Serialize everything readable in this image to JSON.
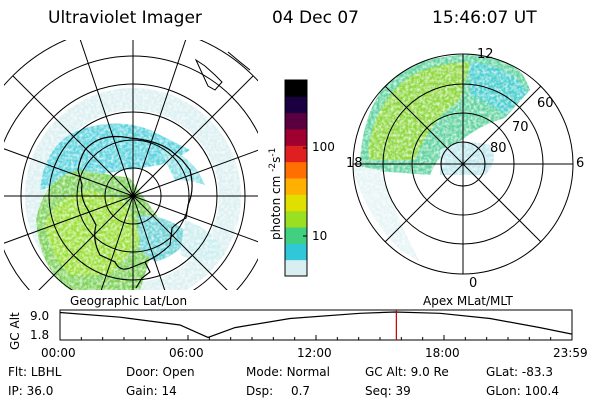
{
  "header": {
    "instrument": "Ultraviolet Imager",
    "date": "04 Dec 07",
    "time": "15:46:07 UT"
  },
  "left_map": {
    "caption": "Geographic Lat/Lon"
  },
  "right_map": {
    "caption": "Apex MLat/MLT",
    "mlt_labels": {
      "top": "12",
      "left": "18",
      "right": "6",
      "bottom": "0"
    },
    "lat_labels": [
      "60",
      "70",
      "80"
    ]
  },
  "colorbar": {
    "unit_label": "photon cm",
    "unit_sup1": "-2",
    "unit_mid": "s",
    "unit_sup2": "-1",
    "ticks": [
      "100",
      "10"
    ],
    "colors": [
      "#d8eef0",
      "#30c8d8",
      "#40d080",
      "#9be020",
      "#e0e000",
      "#ffb000",
      "#ff7000",
      "#e02020",
      "#a00030",
      "#5a0040",
      "#1a0040",
      "#000000"
    ]
  },
  "altitude_plot": {
    "ylabel": "GC Alt",
    "ytick_top": "9.0",
    "ytick_bottom": "1.8",
    "xticks": [
      "00:00",
      "06:00",
      "12:00",
      "18:00",
      "23:59"
    ],
    "current_time_color": "#c00000"
  },
  "footer": {
    "row1": [
      {
        "label": "Flt:",
        "value": "LBHL"
      },
      {
        "label": "Door:",
        "value": "Open"
      },
      {
        "label": "Mode:",
        "value": "Normal"
      },
      {
        "label": "GC Alt:",
        "value": "9.0 Re"
      },
      {
        "label": "GLat:",
        "value": "-83.3"
      }
    ],
    "row2": [
      {
        "label": "IP:",
        "value": "36.0"
      },
      {
        "label": "Gain:",
        "value": "14"
      },
      {
        "label": "Dsp:",
        "value": "0.7"
      },
      {
        "label": "Seq:",
        "value": "39"
      },
      {
        "label": "GLon:",
        "value": "100.4"
      }
    ]
  }
}
